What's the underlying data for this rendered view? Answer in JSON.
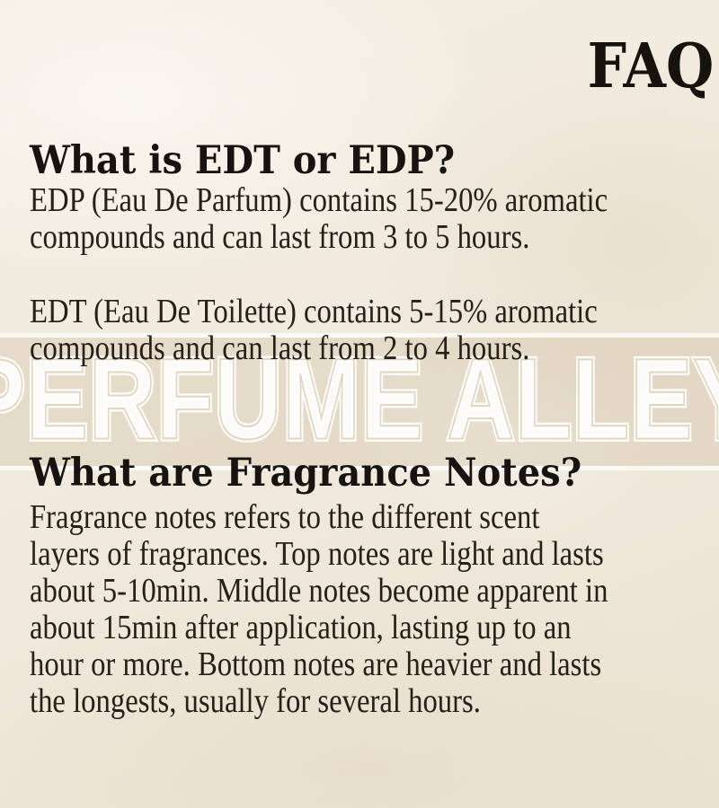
{
  "header": {
    "title": "FAQ"
  },
  "watermark": {
    "text": "PERFUME ALLEY",
    "band_color": "rgba(205,188,160,0.32)",
    "line_color": "rgba(255,255,255,0.82)",
    "text_color": "rgba(255,255,255,0.88)"
  },
  "theme": {
    "background_color": "#f1eadd",
    "text_color": "#262019",
    "heading_color": "#171310"
  },
  "sections": [
    {
      "heading": "What is EDT or EDP?",
      "paragraphs": [
        {
          "lines": [
            "EDP (Eau De Parfum) contains 15-20% aromatic",
            "compounds and can last from 3 to 5 hours."
          ]
        },
        {
          "lines": [
            "EDT (Eau De Toilette) contains 5-15% aromatic",
            "compounds and can last from 2 to 4 hours."
          ]
        }
      ]
    },
    {
      "heading": "What are Fragrance Notes?",
      "paragraphs": [
        {
          "lines": [
            "Fragrance notes refers to the different scent",
            "layers of fragrances. Top notes are light and lasts",
            "about 5-10min. Middle notes become apparent in",
            "about 15min after application, lasting up to an",
            "hour or more. Bottom notes are heavier and lasts",
            "the longests, usually for several hours."
          ]
        }
      ]
    }
  ]
}
